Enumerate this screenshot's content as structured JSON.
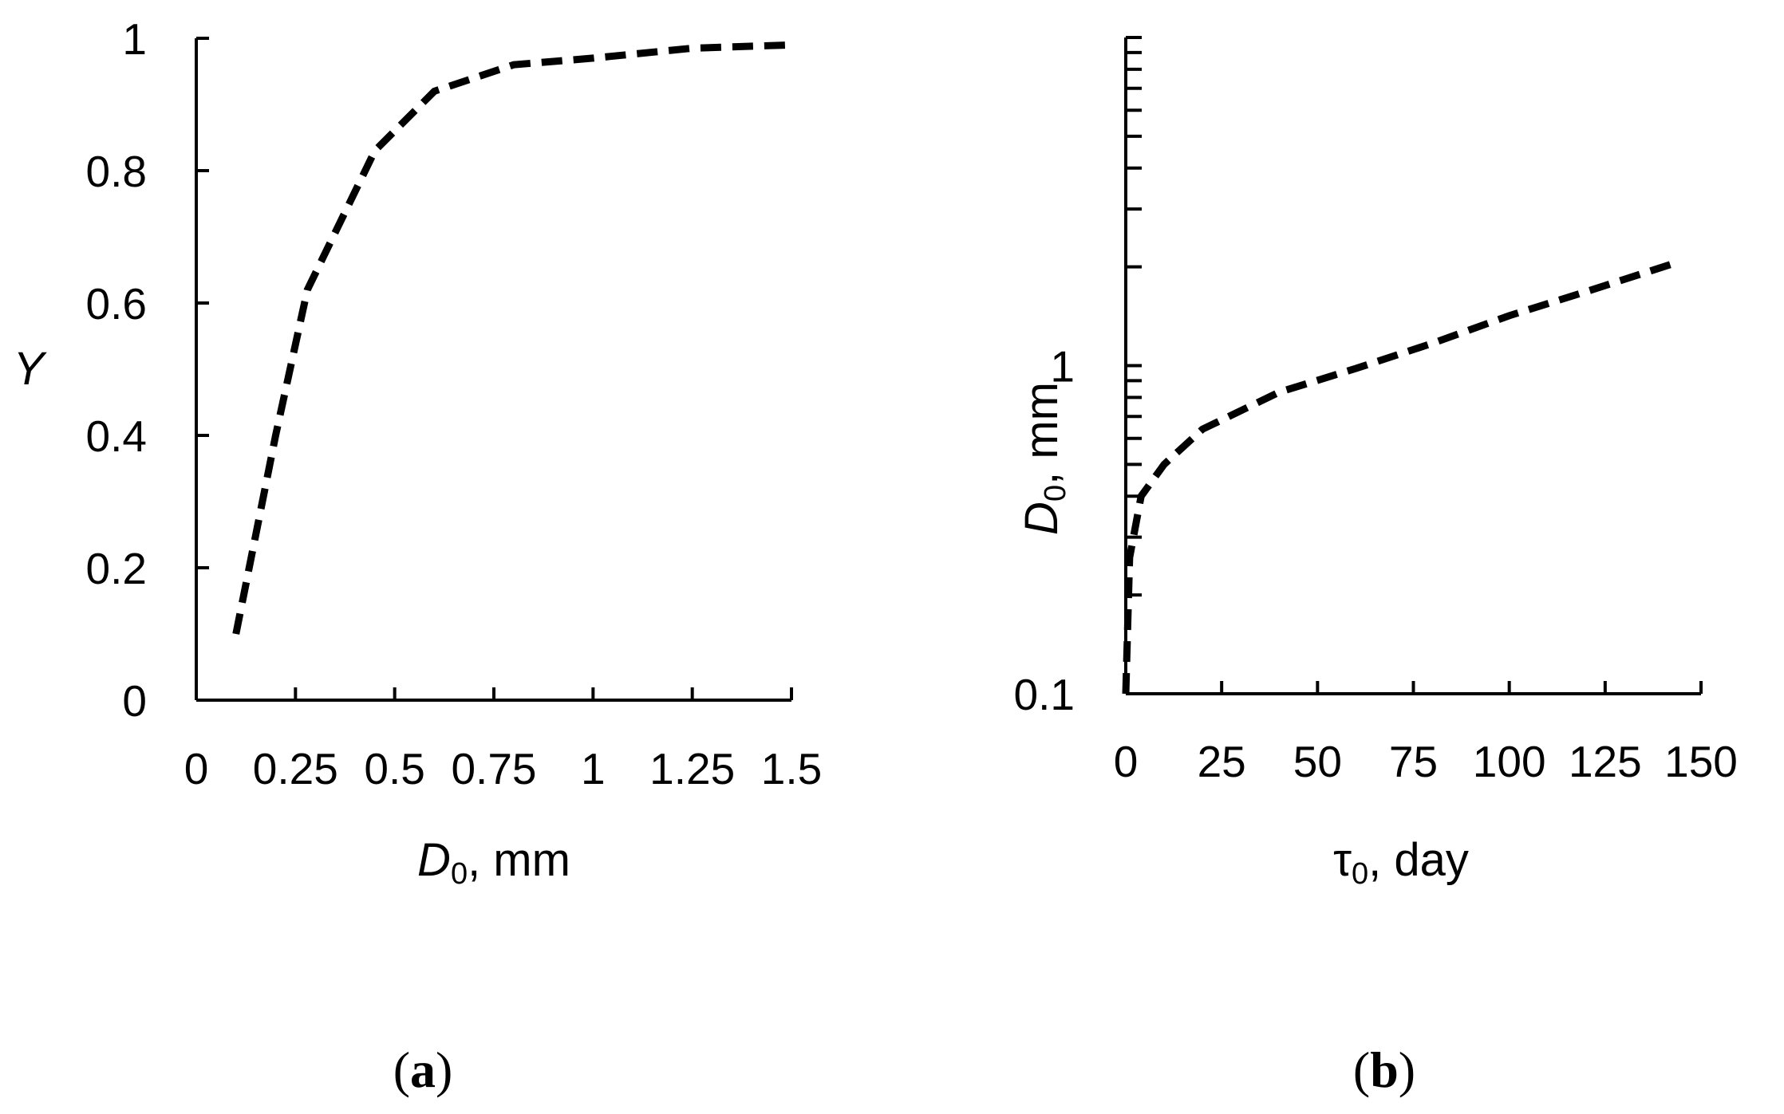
{
  "chart_data": [
    {
      "type": "line",
      "caption": "(a)",
      "caption_letter": "a",
      "xlabel": {
        "var": "D",
        "sub": "0",
        "unit": ", mm"
      },
      "ylabel": "Y",
      "xlim": [
        0,
        1.5
      ],
      "ylim": [
        0,
        1
      ],
      "x_ticks": [
        0,
        0.25,
        0.5,
        0.75,
        1,
        1.25,
        1.5
      ],
      "x_tick_labels": [
        "0",
        "0.25",
        "0.5",
        "0.75",
        "1",
        "1.25",
        "1.5"
      ],
      "y_ticks": [
        0,
        0.2,
        0.4,
        0.6,
        0.8,
        1
      ],
      "y_tick_labels": [
        "0",
        "0.2",
        "0.4",
        "0.6",
        "0.8",
        "1"
      ],
      "line_style": "dashed",
      "grid": false,
      "series": [
        {
          "x": [
            0.1,
            0.2,
            0.28,
            0.45,
            0.6,
            0.8,
            1.0,
            1.25,
            1.5
          ],
          "y": [
            0.1,
            0.4,
            0.62,
            0.83,
            0.92,
            0.96,
            0.97,
            0.985,
            0.99
          ]
        }
      ]
    },
    {
      "type": "line",
      "caption": "(b)",
      "caption_letter": "b",
      "xlabel": {
        "var": "τ",
        "sub": "0",
        "unit": ", day"
      },
      "ylabel": {
        "var": "D",
        "sub": "0",
        "unit": ", mm"
      },
      "xlim": [
        0,
        150
      ],
      "ylim": [
        0.1,
        10
      ],
      "yscale": "log",
      "x_ticks": [
        0,
        25,
        50,
        75,
        100,
        125,
        150
      ],
      "x_tick_labels": [
        "0",
        "25",
        "50",
        "75",
        "100",
        "125",
        "150"
      ],
      "y_ticks": [
        0.1,
        1
      ],
      "y_tick_labels": [
        "0.1",
        "1"
      ],
      "line_style": "dashed",
      "grid": false,
      "series": [
        {
          "x": [
            0,
            1,
            4,
            10,
            20,
            40,
            60,
            80,
            100,
            120,
            143
          ],
          "y": [
            0.1,
            0.26,
            0.4,
            0.5,
            0.64,
            0.83,
            0.98,
            1.17,
            1.42,
            1.68,
            2.05
          ]
        }
      ]
    }
  ]
}
